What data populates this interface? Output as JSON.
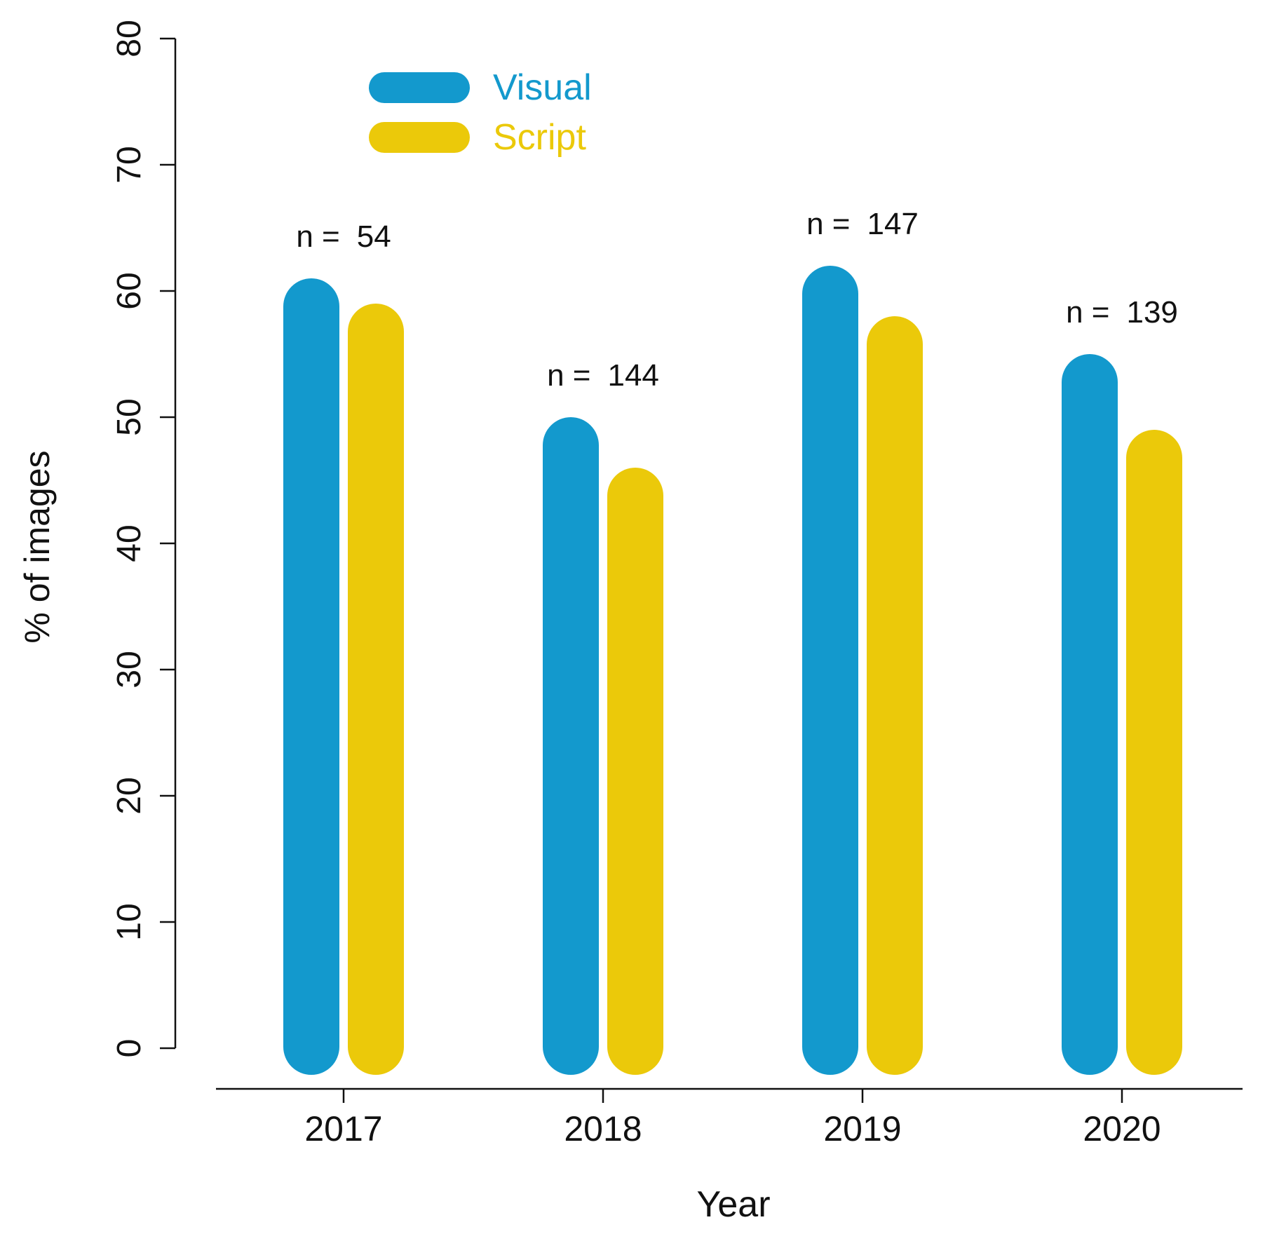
{
  "chart_data": {
    "type": "bar",
    "title": "",
    "xlabel": "Year",
    "ylabel": "% of images",
    "ylim": [
      0,
      80
    ],
    "yticks": [
      "0",
      "10",
      "20",
      "30",
      "40",
      "50",
      "60",
      "70",
      "80"
    ],
    "categories": [
      "2017",
      "2018",
      "2019",
      "2020"
    ],
    "series": [
      {
        "name": "Visual",
        "color": "#1399CD",
        "values": [
          61,
          50,
          62,
          55
        ]
      },
      {
        "name": "Script",
        "color": "#EBC90A",
        "values": [
          59,
          46,
          58,
          49
        ]
      }
    ],
    "annotations": [
      {
        "prefix": "n =",
        "value": "54"
      },
      {
        "prefix": "n =",
        "value": "144"
      },
      {
        "prefix": "n =",
        "value": "147"
      },
      {
        "prefix": "n =",
        "value": "139"
      }
    ],
    "legend": {
      "position": "top-left",
      "entries": [
        "Visual",
        "Script"
      ]
    }
  }
}
